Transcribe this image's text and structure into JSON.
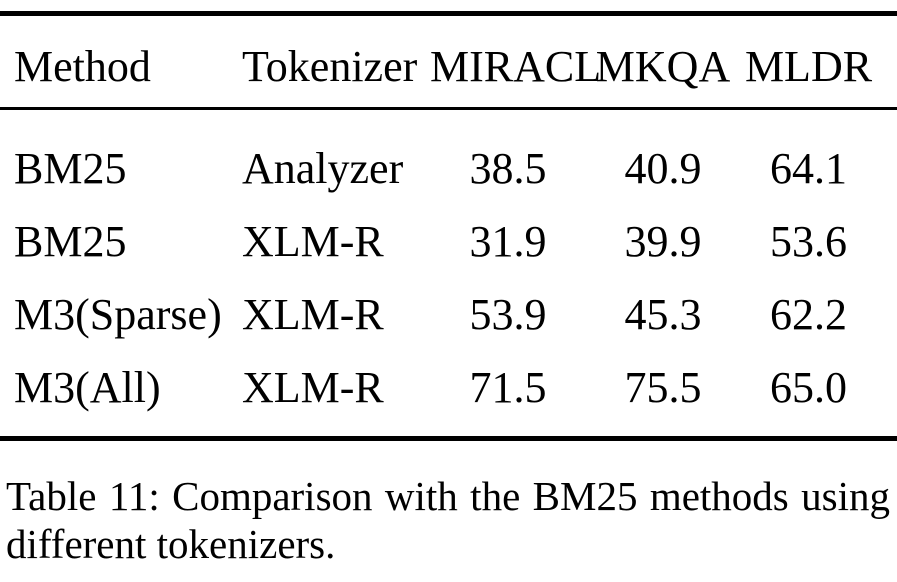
{
  "page": {
    "background_color": "#ffffff",
    "text_color": "#000000",
    "rule_color": "#000000"
  },
  "table": {
    "headers": [
      "Method",
      "Tokenizer",
      "MIRACL",
      "MKQA",
      "MLDR"
    ],
    "rows": [
      [
        "BM25",
        "Analyzer",
        "38.5",
        "40.9",
        "64.1"
      ],
      [
        "BM25",
        "XLM-R",
        "31.9",
        "39.9",
        "53.6"
      ],
      [
        "M3(Sparse)",
        "XLM-R",
        "53.9",
        "45.3",
        "62.2"
      ],
      [
        "M3(All)",
        "XLM-R",
        "71.5",
        "75.5",
        "65.0"
      ]
    ]
  },
  "caption": {
    "line1": "Table 11: Comparison with the BM25 methods using",
    "line2": "different tokenizers.",
    "full_text": "Table 11: Comparison with the BM25 methods using different tokenizers."
  }
}
